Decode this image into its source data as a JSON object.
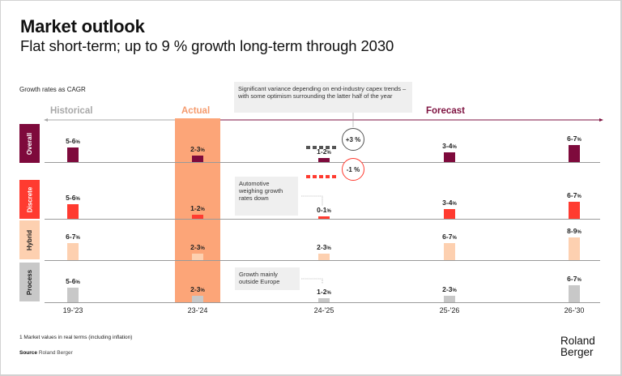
{
  "header": {
    "title": "Market outlook",
    "subtitle": "Flat short-term; up to 9 % growth long-term through 2030"
  },
  "legend_label": "Growth rates as CAGR",
  "periods": {
    "historical": "Historical",
    "actual": "Actual",
    "forecast": "Forecast"
  },
  "notes": {
    "top": "Significant variance depending on end-industry capex trends – with some optimism surrounding the latter half of the year",
    "automotive": "Automotive weighing growth rates down",
    "process": "Growth mainly outside Europe"
  },
  "scenarios": {
    "upside": "+3 %",
    "downside": "-1 %"
  },
  "colors": {
    "overall": "#7e0a3c",
    "discrete": "#ff3b30",
    "hybrid": "#fdd0b0",
    "process": "#c8c8c8",
    "actual_band": "#fca578",
    "forecast": "#7e1240",
    "historical": "#a8a8a8"
  },
  "chart_data": {
    "type": "bar",
    "title": "Market outlook",
    "subtitle": "Flat short-term; up to 9 % growth long-term through 2030",
    "ylabel": "Growth rates as CAGR",
    "categories": [
      "19-'23",
      "23-'24",
      "24-'25",
      "25-'26",
      "26-'30"
    ],
    "period_groups": [
      {
        "label": "Historical",
        "categories": [
          "19-'23"
        ]
      },
      {
        "label": "Actual",
        "categories": [
          "23-'24"
        ]
      },
      {
        "label": "Forecast",
        "categories": [
          "24-'25",
          "25-'26",
          "26-'30"
        ]
      }
    ],
    "series": [
      {
        "name": "Overall",
        "labels": [
          "5-6 %",
          "2-3 %",
          "1-2 %",
          "3-4 %",
          "6-7 %"
        ],
        "values": [
          5.5,
          2.5,
          1.5,
          3.5,
          6.5
        ]
      },
      {
        "name": "Discrete",
        "labels": [
          "5-6 %",
          "1-2 %",
          "0-1 %",
          "3-4 %",
          "6-7 %"
        ],
        "values": [
          5.5,
          1.5,
          0.5,
          3.5,
          6.5
        ]
      },
      {
        "name": "Hybrid",
        "labels": [
          "6-7 %",
          "2-3 %",
          "2-3 %",
          "6-7 %",
          "8-9 %"
        ],
        "values": [
          6.5,
          2.5,
          2.5,
          6.5,
          8.5
        ]
      },
      {
        "name": "Process",
        "labels": [
          "5-6 %",
          "2-3 %",
          "1-2 %",
          "2-3 %",
          "6-7 %"
        ],
        "values": [
          5.5,
          2.5,
          1.5,
          2.5,
          6.5
        ]
      }
    ],
    "annotations": [
      {
        "category": "24-'25",
        "series": "Overall",
        "upside": "+3 %",
        "downside": "-1 %"
      }
    ],
    "grid": false,
    "legend": "left"
  },
  "footer": {
    "footnote": "1 Market values in real terms (including inflation)",
    "source_label": "Source",
    "source_value": "Roland Berger",
    "logo_line1": "Roland",
    "logo_line2": "Berger"
  }
}
